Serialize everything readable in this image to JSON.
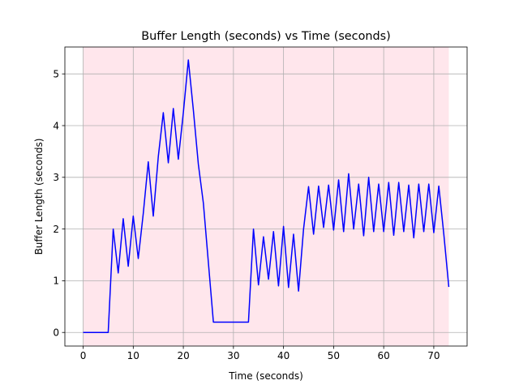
{
  "chart_data": {
    "type": "line",
    "title": "Buffer Length (seconds) vs Time (seconds)",
    "xlabel": "Time (seconds)",
    "ylabel": "Buffer Length (seconds)",
    "xlim": [
      -3.65,
      76.65
    ],
    "ylim": [
      -0.263,
      5.52
    ],
    "xticks": [
      0,
      10,
      20,
      30,
      40,
      50,
      60,
      70
    ],
    "yticks": [
      0,
      1,
      2,
      3,
      4,
      5
    ],
    "grid": true,
    "shaded_region": {
      "x0": 0,
      "x1": 73,
      "color": "#ffe6ec"
    },
    "series": [
      {
        "color": "#0000ff",
        "x": [
          0,
          5,
          6,
          7,
          8,
          9,
          10,
          11,
          12,
          13,
          14,
          15,
          16,
          17,
          18,
          19,
          20,
          21,
          22,
          23,
          24,
          26,
          33,
          34,
          35,
          36,
          37,
          38,
          39,
          40,
          41,
          42,
          43,
          44,
          45,
          46,
          47,
          48,
          49,
          50,
          51,
          52,
          53,
          54,
          55,
          56,
          57,
          58,
          59,
          60,
          61,
          62,
          63,
          64,
          65,
          66,
          67,
          68,
          69,
          70,
          71,
          72,
          73
        ],
        "y": [
          0,
          0,
          2.0,
          1.15,
          2.2,
          1.28,
          2.25,
          1.43,
          2.3,
          3.3,
          2.25,
          3.4,
          4.25,
          3.28,
          4.33,
          3.35,
          4.25,
          5.27,
          4.3,
          3.25,
          2.5,
          0.2,
          0.2,
          2.0,
          0.92,
          1.85,
          1.03,
          1.95,
          0.9,
          2.05,
          0.87,
          1.9,
          0.8,
          2.0,
          2.82,
          1.9,
          2.83,
          2.03,
          2.85,
          1.98,
          2.95,
          1.95,
          3.07,
          2.0,
          2.87,
          1.87,
          3.0,
          1.95,
          2.87,
          1.95,
          2.9,
          1.88,
          2.9,
          1.95,
          2.85,
          1.83,
          2.87,
          1.95,
          2.87,
          1.93,
          2.83,
          1.9,
          0.88
        ]
      }
    ]
  }
}
